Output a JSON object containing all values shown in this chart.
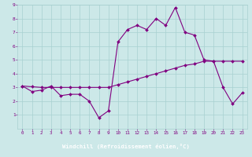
{
  "xlabel": "Windchill (Refroidissement éolien,°C)",
  "x": [
    0,
    1,
    2,
    3,
    4,
    5,
    6,
    7,
    8,
    9,
    10,
    11,
    12,
    13,
    14,
    15,
    16,
    17,
    18,
    19,
    20,
    21,
    22,
    23
  ],
  "y_curve": [
    3.1,
    2.7,
    2.8,
    3.1,
    2.4,
    2.5,
    2.5,
    2.0,
    0.8,
    1.3,
    6.3,
    7.2,
    7.5,
    7.2,
    8.0,
    7.5,
    8.8,
    7.0,
    6.8,
    5.0,
    4.9,
    3.0,
    1.8,
    2.6
  ],
  "y_trend": [
    3.1,
    3.05,
    3.0,
    3.0,
    3.0,
    3.0,
    3.0,
    3.0,
    3.0,
    3.0,
    3.2,
    3.4,
    3.6,
    3.8,
    4.0,
    4.2,
    4.4,
    4.6,
    4.7,
    4.9,
    4.9,
    4.9,
    4.9,
    4.9
  ],
  "line_color": "#800080",
  "bg_color": "#cce8e8",
  "grid_color": "#a8d0d0",
  "ylim": [
    0,
    9
  ],
  "xlim": [
    -0.5,
    23.5
  ],
  "yticks": [
    1,
    2,
    3,
    4,
    5,
    6,
    7,
    8,
    9
  ],
  "xticks": [
    0,
    1,
    2,
    3,
    4,
    5,
    6,
    7,
    8,
    9,
    10,
    11,
    12,
    13,
    14,
    15,
    16,
    17,
    18,
    19,
    20,
    21,
    22,
    23
  ]
}
